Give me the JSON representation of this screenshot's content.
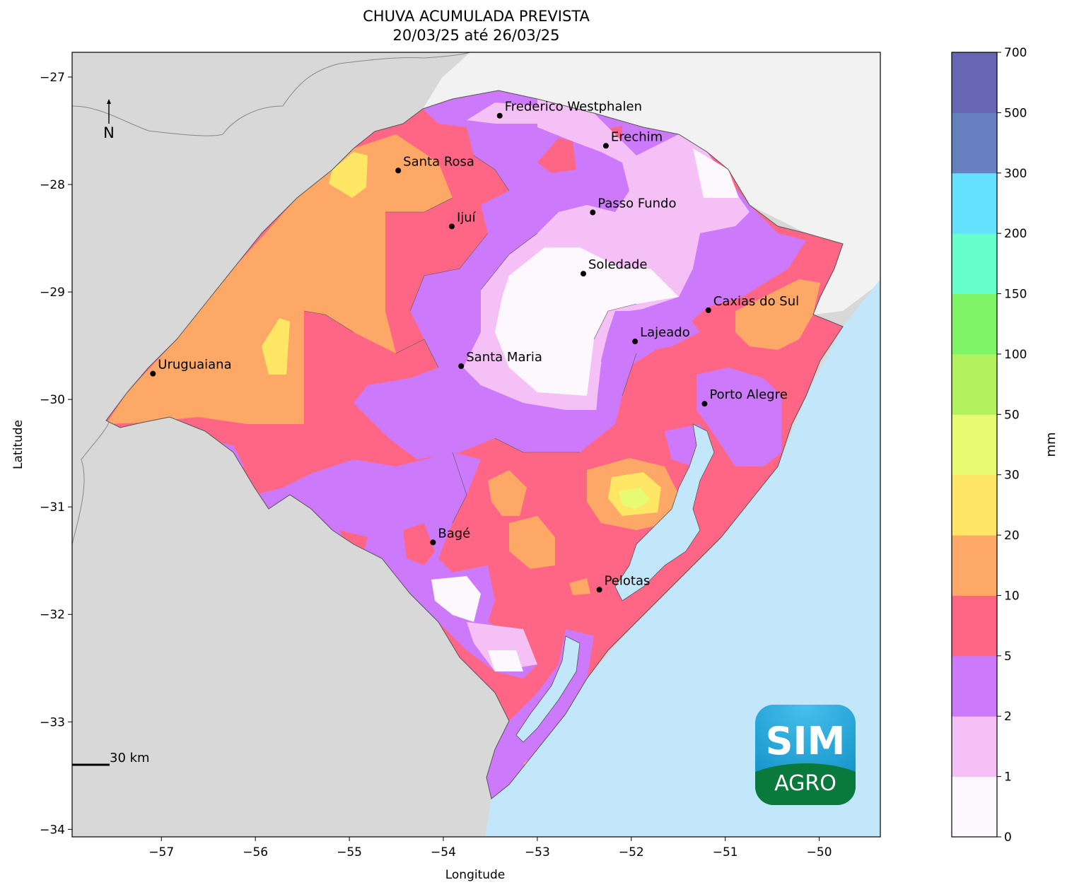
{
  "map": {
    "title": "CHUVA ACUMULADA PREVISTA",
    "subtitle": "20/03/25 até 26/03/25",
    "xlabel": "Longitude",
    "ylabel": "Latitude",
    "xticks": [
      -57,
      -56,
      -55,
      -54,
      -53,
      -52,
      -51,
      -50
    ],
    "yticks": [
      -27,
      -28,
      -29,
      -30,
      -31,
      -32,
      -33,
      -34
    ],
    "xtick_labels": [
      "−57",
      "−56",
      "−55",
      "−54",
      "−53",
      "−52",
      "−51",
      "−50"
    ],
    "ytick_labels": [
      "−27",
      "−28",
      "−29",
      "−30",
      "−31",
      "−32",
      "−33",
      "−34"
    ],
    "xlim": [
      -57.95,
      -49.35
    ],
    "ylim": [
      -34.07,
      -26.77
    ],
    "north_label": "N",
    "scale_label": "30 km",
    "colors": {
      "land_neighbor": "#d8d8d8",
      "land_north": "#f2f2f2",
      "ocean": "#c2e6fa",
      "borders": "#777777"
    },
    "cities": [
      {
        "name": "Frederico Westphalen",
        "lon": -53.4,
        "lat": -27.36
      },
      {
        "name": "Erechim",
        "lon": -52.27,
        "lat": -27.64
      },
      {
        "name": "Santa Rosa",
        "lon": -54.48,
        "lat": -27.87
      },
      {
        "name": "Passo Fundo",
        "lon": -52.41,
        "lat": -28.26
      },
      {
        "name": "Ijuí",
        "lon": -53.91,
        "lat": -28.39
      },
      {
        "name": "Soledade",
        "lon": -52.51,
        "lat": -28.83
      },
      {
        "name": "Caxias do Sul",
        "lon": -51.18,
        "lat": -29.17
      },
      {
        "name": "Lajeado",
        "lon": -51.96,
        "lat": -29.46
      },
      {
        "name": "Santa Maria",
        "lon": -53.81,
        "lat": -29.69
      },
      {
        "name": "Uruguaiana",
        "lon": -57.09,
        "lat": -29.76
      },
      {
        "name": "Porto Alegre",
        "lon": -51.22,
        "lat": -30.04
      },
      {
        "name": "Bagé",
        "lon": -54.11,
        "lat": -31.33
      },
      {
        "name": "Pelotas",
        "lon": -52.34,
        "lat": -31.77
      }
    ]
  },
  "colorbar": {
    "label": "mm",
    "levels": [
      "0",
      "1",
      "2",
      "5",
      "10",
      "20",
      "30",
      "50",
      "100",
      "150",
      "200",
      "300",
      "500",
      "700"
    ],
    "colors": [
      "#fdf8fd",
      "#f5c0f5",
      "#cc79fc",
      "#ff6685",
      "#fda866",
      "#ffe664",
      "#e6fb73",
      "#b2f25f",
      "#7ff466",
      "#66ffcc",
      "#66e0ff",
      "#6680c0",
      "#6666b3"
    ]
  },
  "logo": {
    "line1": "SIM",
    "line2": "AGRO"
  }
}
